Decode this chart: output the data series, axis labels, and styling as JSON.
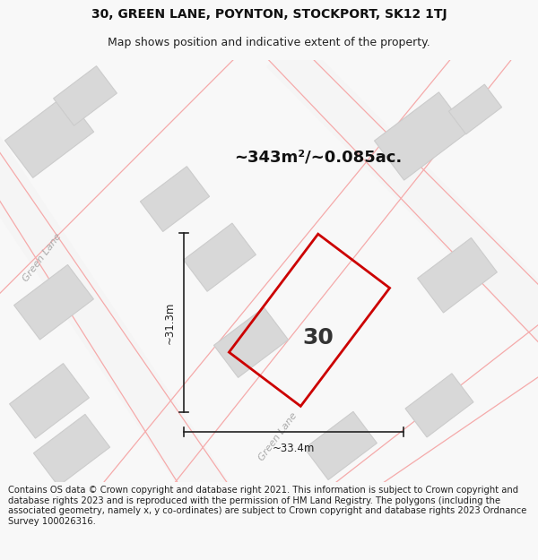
{
  "title_line1": "30, GREEN LANE, POYNTON, STOCKPORT, SK12 1TJ",
  "title_line2": "Map shows position and indicative extent of the property.",
  "footer_text": "Contains OS data © Crown copyright and database right 2021. This information is subject to Crown copyright and database rights 2023 and is reproduced with the permission of HM Land Registry. The polygons (including the associated geometry, namely x, y co-ordinates) are subject to Crown copyright and database rights 2023 Ordnance Survey 100026316.",
  "area_label": "~343m²/~0.085ac.",
  "width_label": "~33.4m",
  "height_label": "~31.3m",
  "number_label": "30",
  "map_bg": "#f0efef",
  "building_fill": "#d8d8d8",
  "building_stroke": "#cccccc",
  "road_line_color": "#f5aaaa",
  "property_stroke": "#dd0000",
  "dim_color": "#222222",
  "road_label_color": "#aaaaaa",
  "title_fontsize": 10,
  "subtitle_fontsize": 9,
  "footer_fontsize": 7.2,
  "number_fontsize": 18,
  "area_fontsize": 13
}
